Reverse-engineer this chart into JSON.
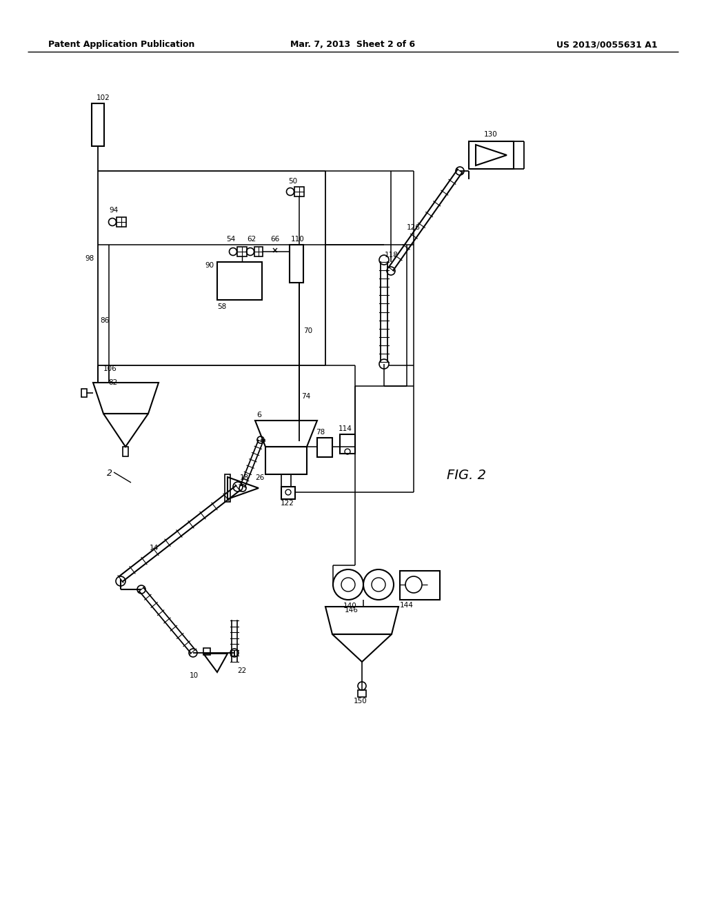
{
  "title_left": "Patent Application Publication",
  "title_center": "Mar. 7, 2013  Sheet 2 of 6",
  "title_right": "US 2013/0055631 A1",
  "fig_label": "FIG. 2",
  "bg_color": "#ffffff",
  "line_color": "#000000",
  "text_color": "#000000",
  "fig_width": 10.24,
  "fig_height": 13.2
}
